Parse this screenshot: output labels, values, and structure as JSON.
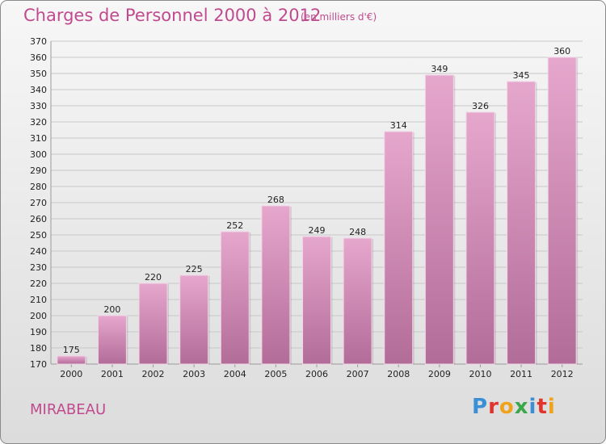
{
  "header": {
    "title": "Charges de Personnel 2000 à 2012",
    "subtitle": "(en milliers d'€)"
  },
  "footer": {
    "city": "MIRABEAU",
    "brand": "Proxiti",
    "brand_letters": [
      {
        "ch": "P",
        "color": "#3a8fd6"
      },
      {
        "ch": "r",
        "color": "#e0342c"
      },
      {
        "ch": "o",
        "color": "#f0a21a"
      },
      {
        "ch": "x",
        "color": "#3aa84a"
      },
      {
        "ch": "i",
        "color": "#3a8fd6"
      },
      {
        "ch": "t",
        "color": "#e0342c"
      },
      {
        "ch": "i",
        "color": "#f0a21a"
      }
    ]
  },
  "colors": {
    "bar_top": "#e6a7cd",
    "bar_bottom": "#b26c98",
    "grid": "#c8c8c8",
    "accent": "#c04a8e"
  },
  "chart_data": {
    "type": "bar",
    "categories": [
      "2000",
      "2001",
      "2002",
      "2003",
      "2004",
      "2005",
      "2006",
      "2007",
      "2008",
      "2009",
      "2010",
      "2011",
      "2012"
    ],
    "values": [
      175,
      200,
      220,
      225,
      252,
      268,
      249,
      248,
      314,
      349,
      326,
      345,
      360
    ],
    "ylim": [
      170,
      370
    ],
    "ytick_step": 10,
    "grid": true
  }
}
